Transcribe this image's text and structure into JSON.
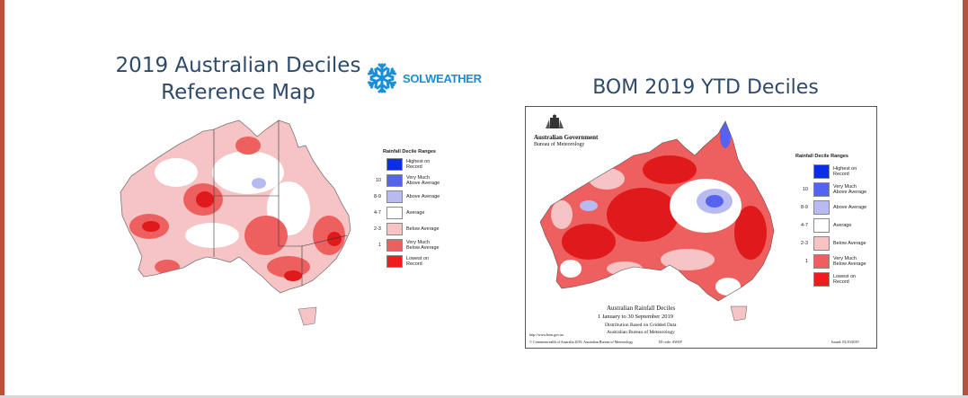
{
  "left_title_line1": "2019 Australian Deciles",
  "left_title_line2": "Reference Map",
  "right_title": "BOM 2019 YTD Deciles",
  "logo": {
    "icon": "snowflake-icon",
    "text_part1": "SOL",
    "text_part2": "WEATHER",
    "color": "#1a8fd8"
  },
  "legend": {
    "title": "Rainfall Decile Ranges",
    "items": [
      {
        "code": "",
        "label": "Highest on Record",
        "color": "#0a2ee6"
      },
      {
        "code": "10",
        "label": "Very Much Above Average",
        "color": "#5563ee"
      },
      {
        "code": "8-9",
        "label": "Above Average",
        "color": "#b8baf2"
      },
      {
        "code": "4-7",
        "label": "Average",
        "color": "#ffffff"
      },
      {
        "code": "2-3",
        "label": "Below Average",
        "color": "#f7c3c3"
      },
      {
        "code": "1",
        "label": "Very Much Below Average",
        "color": "#ee6060"
      },
      {
        "code": "",
        "label": "Lowest on Record",
        "color": "#ee1c1c"
      }
    ]
  },
  "bom": {
    "agency_line1": "Australian Government",
    "agency_line2": "Bureau of Meteorology",
    "caption_line1": "Australian Rainfall Deciles",
    "caption_line2": "1 January to 30 September 2019",
    "caption_line3": "Distribution Based on Gridded Data",
    "caption_line4": "Australian Bureau of Meteorology",
    "url": "http://www.bom.gov.au",
    "copyright": "© Commonwealth of Australia 2019, Australian Bureau of Meteorology",
    "id_code": "ID code: AWAP",
    "issued": "Issued: 03/10/2019"
  }
}
